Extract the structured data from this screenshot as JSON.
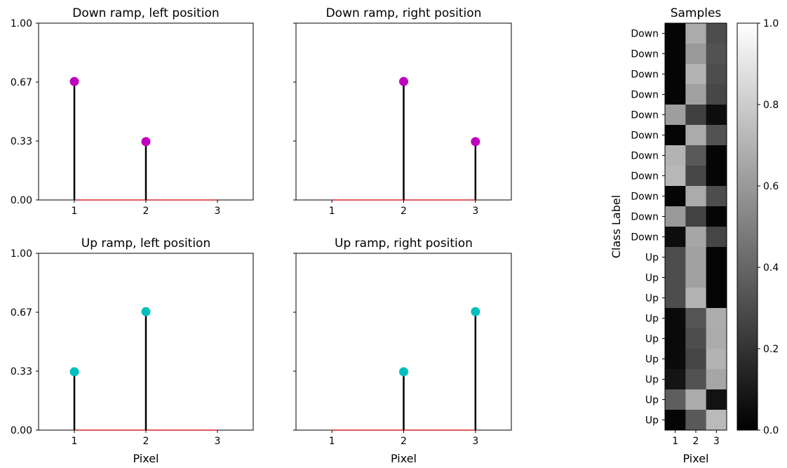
{
  "chart_data": [
    {
      "type": "stem",
      "title": "Down ramp, left position",
      "xlabel": "",
      "x": [
        1,
        2,
        3
      ],
      "y": [
        0.67,
        0.33,
        0
      ],
      "marker_color": "#bf00bf",
      "xticks": [
        "1",
        "2",
        "3"
      ],
      "yticks": [
        "0.00",
        "0.33",
        "0.67",
        "1.00"
      ],
      "xlim": [
        0.5,
        3.5
      ],
      "ylim": [
        0,
        1
      ]
    },
    {
      "type": "stem",
      "title": "Down ramp, right position",
      "xlabel": "",
      "x": [
        1,
        2,
        3
      ],
      "y": [
        0,
        0.67,
        0.33
      ],
      "marker_color": "#bf00bf",
      "xticks": [
        "1",
        "2",
        "3"
      ],
      "yticks": [],
      "xlim": [
        0.5,
        3.5
      ],
      "ylim": [
        0,
        1
      ]
    },
    {
      "type": "stem",
      "title": "Up ramp, left position",
      "xlabel": "Pixel",
      "x": [
        1,
        2,
        3
      ],
      "y": [
        0.33,
        0.67,
        0
      ],
      "marker_color": "#00bfbf",
      "xticks": [
        "1",
        "2",
        "3"
      ],
      "yticks": [
        "0.00",
        "0.33",
        "0.67",
        "1.00"
      ],
      "xlim": [
        0.5,
        3.5
      ],
      "ylim": [
        0,
        1
      ]
    },
    {
      "type": "stem",
      "title": "Up ramp, right position",
      "xlabel": "Pixel",
      "x": [
        1,
        2,
        3
      ],
      "y": [
        0,
        0.33,
        0.67
      ],
      "marker_color": "#00bfbf",
      "xticks": [
        "1",
        "2",
        "3"
      ],
      "yticks": [],
      "xlim": [
        0.5,
        3.5
      ],
      "ylim": [
        0,
        1
      ]
    },
    {
      "type": "heatmap",
      "title": "Samples",
      "xlabel": "Pixel",
      "ylabel": "Class Label",
      "columns": [
        "1",
        "2",
        "3"
      ],
      "row_labels": [
        "Down",
        "Down",
        "Down",
        "Down",
        "Down",
        "Down",
        "Down",
        "Down",
        "Down",
        "Down",
        "Down",
        "Up",
        "Up",
        "Up",
        "Up",
        "Up",
        "Up",
        "Up",
        "Up",
        "Up"
      ],
      "values": [
        [
          0.02,
          0.67,
          0.3
        ],
        [
          0.02,
          0.6,
          0.32
        ],
        [
          0.02,
          0.7,
          0.3
        ],
        [
          0.02,
          0.63,
          0.28
        ],
        [
          0.62,
          0.25,
          0.05
        ],
        [
          0.02,
          0.67,
          0.32
        ],
        [
          0.7,
          0.35,
          0.02
        ],
        [
          0.72,
          0.28,
          0.02
        ],
        [
          0.02,
          0.67,
          0.3
        ],
        [
          0.6,
          0.26,
          0.02
        ],
        [
          0.05,
          0.65,
          0.27
        ],
        [
          0.3,
          0.63,
          0.02
        ],
        [
          0.3,
          0.63,
          0.02
        ],
        [
          0.3,
          0.7,
          0.02
        ],
        [
          0.04,
          0.33,
          0.68
        ],
        [
          0.04,
          0.3,
          0.67
        ],
        [
          0.04,
          0.27,
          0.7
        ],
        [
          0.08,
          0.32,
          0.65
        ],
        [
          0.37,
          0.67,
          0.07
        ],
        [
          0.02,
          0.35,
          0.73
        ]
      ],
      "colormap": "gray",
      "colorbar": {
        "range": [
          0,
          1
        ],
        "ticks": [
          "0.0",
          "0.2",
          "0.4",
          "0.6",
          "0.8",
          "1.0"
        ]
      }
    }
  ]
}
